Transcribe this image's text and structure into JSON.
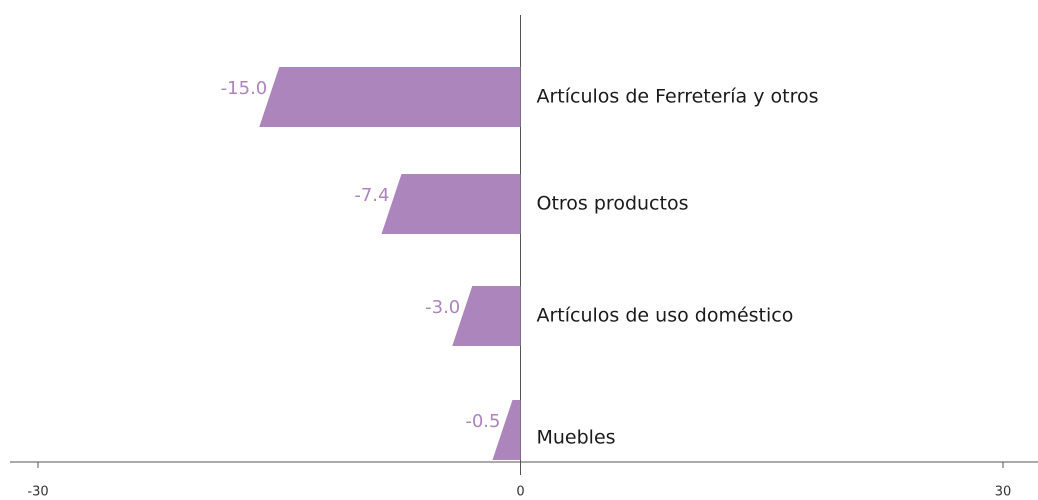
{
  "chart_data": {
    "type": "bar",
    "orientation": "horizontal",
    "categories": [
      "Artículos de Ferretería y otros",
      "Otros productos",
      "Artículos de uso doméstico",
      "Muebles"
    ],
    "values": [
      -15,
      -7.4,
      -3,
      -0.5
    ],
    "value_labels": [
      "-15.0",
      "-7.4",
      "-3.0",
      "-0.5"
    ],
    "color": "#ad85bd",
    "xlim": [
      -30,
      30
    ],
    "xticks": [
      -30,
      0,
      30
    ]
  }
}
